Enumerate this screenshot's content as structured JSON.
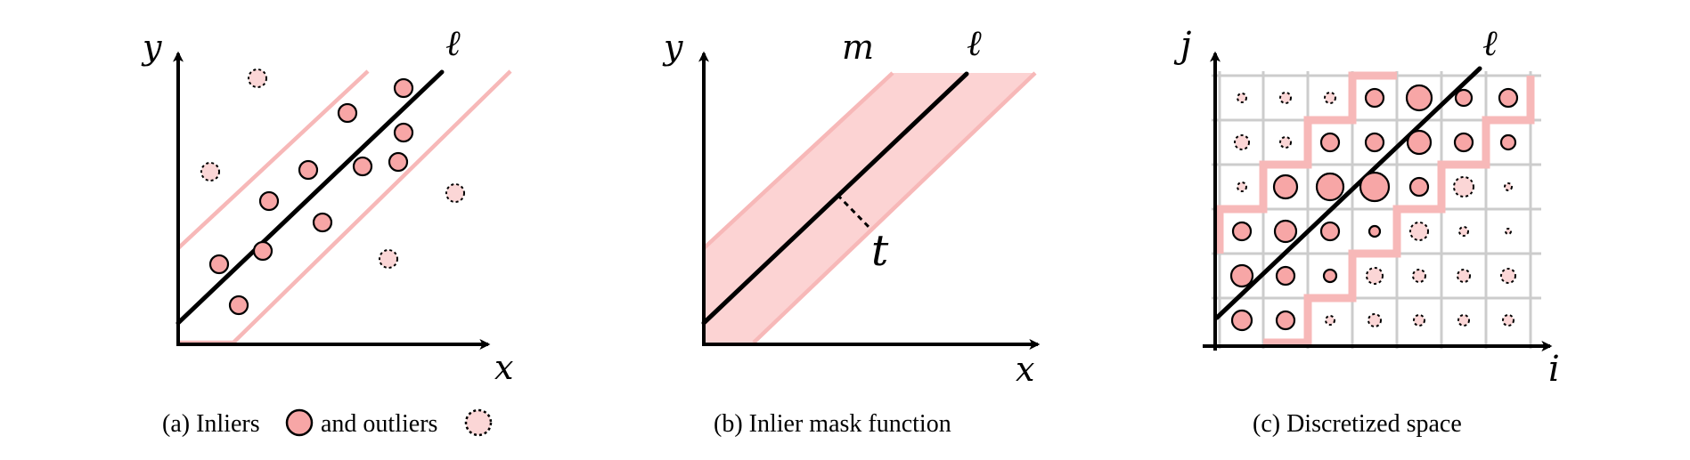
{
  "panels": {
    "a": {
      "axis_x": "x",
      "axis_y": "y",
      "line_label": "ℓ",
      "caption_prefix": "(a) Inliers",
      "caption_middle": "and outliers"
    },
    "b": {
      "axis_x": "x",
      "axis_y": "y",
      "line_label": "ℓ",
      "band_label": "m",
      "threshold_label": "t",
      "caption": "(b) Inlier mask function"
    },
    "c": {
      "axis_x": "i",
      "axis_y": "j",
      "line_label": "ℓ",
      "caption": "(c) Discretized space"
    }
  },
  "colors": {
    "inlier_fill": "#f7a6a6",
    "outlier_fill": "#fbd6d6",
    "band_fill": "#fcd3d3",
    "band_edge": "#f7b8b8",
    "grid": "#cccccc"
  }
}
